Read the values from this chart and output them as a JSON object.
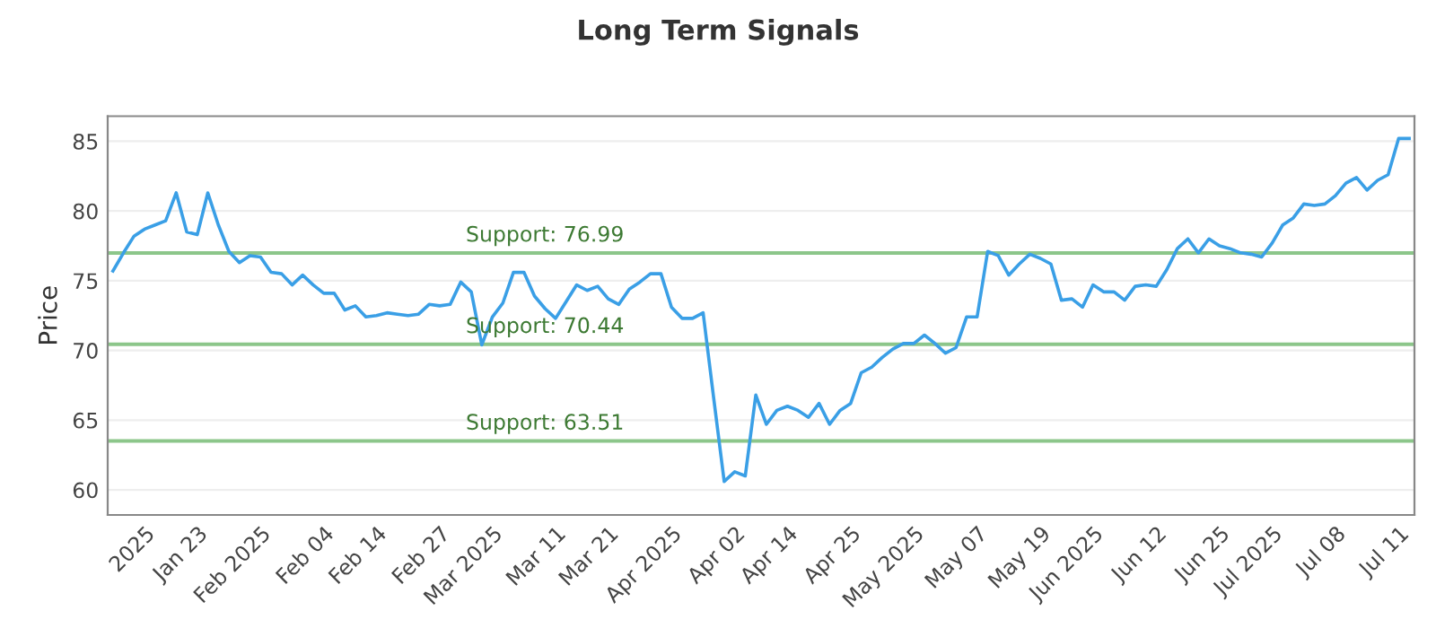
{
  "chart_data": {
    "type": "line",
    "title": "Long Term Signals",
    "ylabel": "Price",
    "categories": [
      null,
      null,
      null,
      "2025",
      null,
      null,
      null,
      null,
      "Jan 23",
      null,
      null,
      null,
      null,
      null,
      "Feb 2025",
      null,
      null,
      null,
      null,
      null,
      "Feb 04",
      null,
      null,
      null,
      null,
      "Feb 14",
      null,
      null,
      null,
      null,
      null,
      "Feb 27",
      null,
      null,
      null,
      null,
      "Mar 2025",
      null,
      null,
      null,
      null,
      null,
      "Mar 11",
      null,
      null,
      null,
      null,
      "Mar 21",
      null,
      null,
      null,
      null,
      null,
      "Apr 2025",
      null,
      null,
      null,
      null,
      null,
      "Apr 02",
      null,
      null,
      null,
      null,
      "Apr 14",
      null,
      null,
      null,
      null,
      null,
      "Apr 25",
      null,
      null,
      null,
      null,
      null,
      "May 2025",
      null,
      null,
      null,
      null,
      null,
      "May 07",
      null,
      null,
      null,
      null,
      null,
      "May 19",
      null,
      null,
      null,
      null,
      "Jun 2025",
      null,
      null,
      null,
      null,
      null,
      "Jun 12",
      null,
      null,
      null,
      null,
      null,
      "Jun 25",
      null,
      null,
      null,
      null,
      "Jul 2025",
      null,
      null,
      null,
      null,
      null,
      "Jul 08",
      null,
      null,
      null,
      null,
      null,
      "Jul 11",
      null
    ],
    "series": [
      {
        "color": "#3a9fe6",
        "values": [
          75.7,
          77.0,
          78.2,
          78.7,
          79.0,
          79.3,
          81.3,
          78.5,
          78.3,
          81.3,
          79.0,
          77.1,
          76.3,
          76.8,
          76.7,
          75.6,
          75.5,
          74.7,
          75.4,
          74.7,
          74.1,
          74.1,
          72.9,
          73.2,
          72.4,
          72.5,
          72.7,
          72.6,
          72.5,
          72.6,
          73.3,
          73.2,
          73.3,
          74.9,
          74.2,
          70.4,
          72.4,
          73.4,
          75.6,
          75.6,
          73.9,
          73.0,
          72.3,
          73.5,
          74.7,
          74.3,
          74.6,
          73.7,
          73.3,
          74.4,
          74.9,
          75.5,
          75.5,
          73.1,
          72.3,
          72.3,
          72.7,
          66.6,
          60.6,
          61.3,
          61.0,
          66.8,
          64.7,
          65.7,
          66.0,
          65.7,
          65.2,
          66.2,
          64.7,
          65.7,
          66.2,
          68.4,
          68.8,
          69.5,
          70.1,
          70.5,
          70.5,
          71.1,
          70.5,
          69.8,
          70.2,
          72.4,
          72.4,
          77.1,
          76.8,
          75.4,
          76.2,
          76.9,
          76.6,
          76.2,
          73.6,
          73.7,
          73.1,
          74.7,
          74.2,
          74.2,
          73.6,
          74.6,
          74.7,
          74.6,
          75.8,
          77.3,
          78.0,
          77.0,
          78.0,
          77.5,
          77.3,
          77.0,
          76.9,
          76.7,
          77.7,
          79.0,
          79.5,
          80.5,
          80.4,
          80.5,
          81.1,
          82.0,
          82.4,
          81.5,
          82.2,
          82.6,
          85.2,
          85.2
        ]
      }
    ],
    "ylim": [
      58.2,
      86.8
    ],
    "yticks": [
      60,
      65,
      70,
      75,
      80,
      85
    ],
    "grid": "y",
    "marker": "none",
    "line_style": "solid",
    "ref_lines": [
      {
        "axis": "y",
        "value": 76.99,
        "label": "Support: 76.99",
        "color": "#8cc68a"
      },
      {
        "axis": "y",
        "value": 70.44,
        "label": "Support: 70.44",
        "color": "#8cc68a"
      },
      {
        "axis": "y",
        "value": 63.51,
        "label": "Support: 63.51",
        "color": "#8cc68a"
      }
    ]
  }
}
